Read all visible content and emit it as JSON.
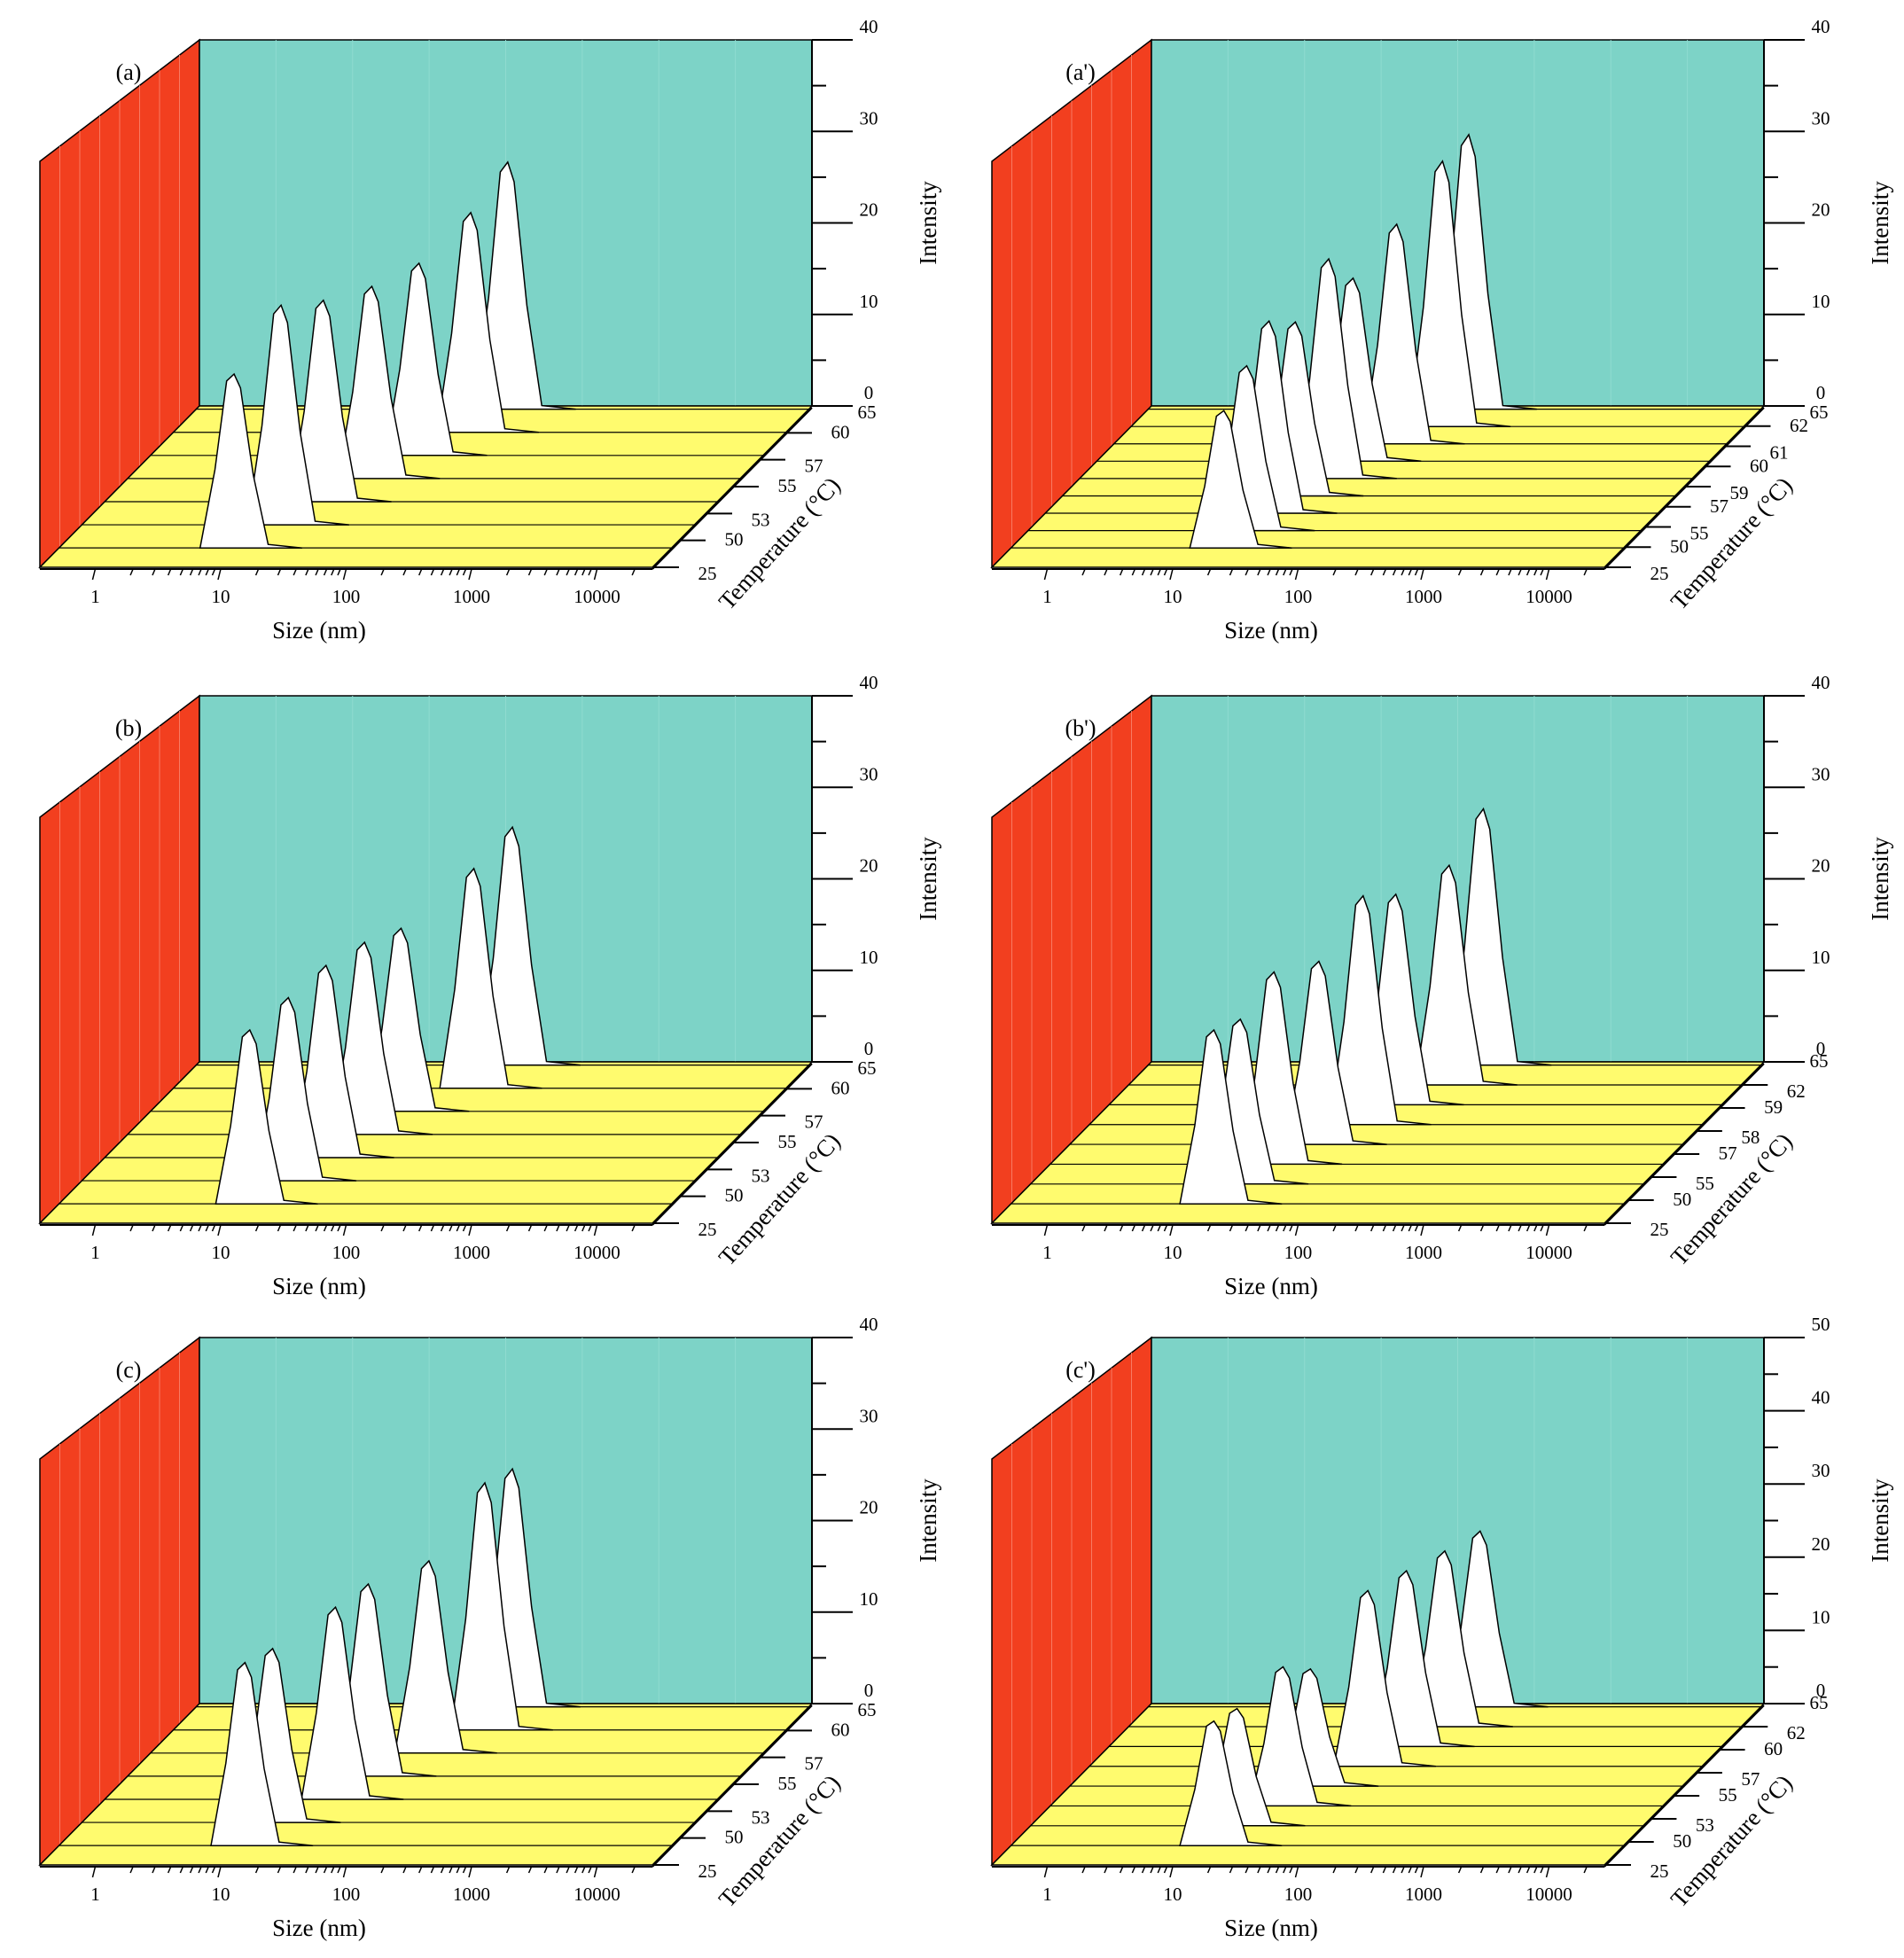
{
  "figure": {
    "chart_data": [
      {
        "type": "area",
        "label": "(a)",
        "xlabel": "Size (nm)",
        "ylabel": "Intensity",
        "zlabel": "Temperature (°C)",
        "x_scale": "log",
        "x_ticks": [
          "1",
          "10",
          "100",
          "1000",
          "10000"
        ],
        "y_ticks": [
          "0",
          "10",
          "20",
          "30",
          "40"
        ],
        "ylim": [
          0,
          40
        ],
        "temperature_ticks": [
          "25",
          "50",
          "53",
          "55",
          "57",
          "60",
          "65"
        ],
        "series": [
          {
            "temperature": "25",
            "peak_size": 9,
            "peak_intensity": 19
          },
          {
            "temperature": "50",
            "peak_size": 14,
            "peak_intensity": 24
          },
          {
            "temperature": "53",
            "peak_size": 20,
            "peak_intensity": 22
          },
          {
            "temperature": "55",
            "peak_size": 32,
            "peak_intensity": 21
          },
          {
            "temperature": "57",
            "peak_size": 50,
            "peak_intensity": 21
          },
          {
            "temperature": "60",
            "peak_size": 85,
            "peak_intensity": 24
          },
          {
            "temperature": "65",
            "peak_size": 110,
            "peak_intensity": 27
          }
        ]
      },
      {
        "type": "area",
        "label": "(a')",
        "xlabel": "Size (nm)",
        "ylabel": "Intensity",
        "zlabel": "Temperature (°C)",
        "x_scale": "log",
        "x_ticks": [
          "1",
          "10",
          "100",
          "1000",
          "10000"
        ],
        "y_ticks": [
          "0",
          "10",
          "20",
          "30",
          "40"
        ],
        "ylim": [
          0,
          40
        ],
        "temperature_ticks": [
          "25",
          "50",
          "55",
          "57",
          "59",
          "60",
          "61",
          "62",
          "65"
        ],
        "series": [
          {
            "temperature": "25",
            "peak_size": 18,
            "peak_intensity": 15
          },
          {
            "temperature": "50",
            "peak_size": 20,
            "peak_intensity": 18
          },
          {
            "temperature": "55",
            "peak_size": 22,
            "peak_intensity": 21
          },
          {
            "temperature": "57",
            "peak_size": 26,
            "peak_intensity": 19
          },
          {
            "temperature": "59",
            "peak_size": 35,
            "peak_intensity": 24
          },
          {
            "temperature": "60",
            "peak_size": 40,
            "peak_intensity": 20
          },
          {
            "temperature": "61",
            "peak_size": 65,
            "peak_intensity": 24
          },
          {
            "temperature": "62",
            "peak_size": 110,
            "peak_intensity": 29
          },
          {
            "temperature": "65",
            "peak_size": 130,
            "peak_intensity": 30
          }
        ]
      },
      {
        "type": "area",
        "label": "(b)",
        "xlabel": "Size (nm)",
        "ylabel": "Intensity",
        "zlabel": "Temperature (°C)",
        "x_scale": "log",
        "x_ticks": [
          "1",
          "10",
          "100",
          "1000",
          "10000"
        ],
        "y_ticks": [
          "0",
          "10",
          "20",
          "30",
          "40"
        ],
        "ylim": [
          0,
          40
        ],
        "temperature_ticks": [
          "25",
          "50",
          "53",
          "55",
          "57",
          "60",
          "65"
        ],
        "series": [
          {
            "temperature": "25",
            "peak_size": 12,
            "peak_intensity": 19
          },
          {
            "temperature": "50",
            "peak_size": 16,
            "peak_intensity": 20
          },
          {
            "temperature": "53",
            "peak_size": 21,
            "peak_intensity": 21
          },
          {
            "temperature": "55",
            "peak_size": 28,
            "peak_intensity": 21
          },
          {
            "temperature": "57",
            "peak_size": 36,
            "peak_intensity": 20
          },
          {
            "temperature": "60",
            "peak_size": 90,
            "peak_intensity": 24
          },
          {
            "temperature": "65",
            "peak_size": 120,
            "peak_intensity": 26
          }
        ]
      },
      {
        "type": "area",
        "label": "(b')",
        "xlabel": "Size (nm)",
        "ylabel": "Intensity",
        "zlabel": "Temperature (°C)",
        "x_scale": "log",
        "x_ticks": [
          "1",
          "10",
          "100",
          "1000",
          "10000"
        ],
        "y_ticks": [
          "0",
          "10",
          "20",
          "30",
          "40"
        ],
        "ylim": [
          0,
          40
        ],
        "temperature_ticks": [
          "25",
          "50",
          "55",
          "57",
          "58",
          "59",
          "62",
          "65"
        ],
        "series": [
          {
            "temperature": "25",
            "peak_size": 15,
            "peak_intensity": 19
          },
          {
            "temperature": "50",
            "peak_size": 17,
            "peak_intensity": 18
          },
          {
            "temperature": "55",
            "peak_size": 22,
            "peak_intensity": 21
          },
          {
            "temperature": "57",
            "peak_size": 35,
            "peak_intensity": 20
          },
          {
            "temperature": "58",
            "peak_size": 55,
            "peak_intensity": 25
          },
          {
            "temperature": "59",
            "peak_size": 70,
            "peak_intensity": 23
          },
          {
            "temperature": "62",
            "peak_size": 130,
            "peak_intensity": 24
          },
          {
            "temperature": "65",
            "peak_size": 170,
            "peak_intensity": 28
          }
        ]
      },
      {
        "type": "area",
        "label": "(c)",
        "xlabel": "Size (nm)",
        "ylabel": "Intensity",
        "zlabel": "Temperature (°C)",
        "x_scale": "log",
        "x_ticks": [
          "1",
          "10",
          "100",
          "1000",
          "10000"
        ],
        "y_ticks": [
          "0",
          "10",
          "20",
          "30",
          "40"
        ],
        "ylim": [
          0,
          40
        ],
        "temperature_ticks": [
          "25",
          "50",
          "53",
          "55",
          "57",
          "60",
          "65"
        ],
        "series": [
          {
            "temperature": "25",
            "peak_size": 11,
            "peak_intensity": 20
          },
          {
            "temperature": "50",
            "peak_size": 12,
            "peak_intensity": 19
          },
          {
            "temperature": "53",
            "peak_size": 25,
            "peak_intensity": 21
          },
          {
            "temperature": "55",
            "peak_size": 30,
            "peak_intensity": 21
          },
          {
            "temperature": "57",
            "peak_size": 60,
            "peak_intensity": 21
          },
          {
            "temperature": "60",
            "peak_size": 110,
            "peak_intensity": 27
          },
          {
            "temperature": "65",
            "peak_size": 120,
            "peak_intensity": 26
          }
        ]
      },
      {
        "type": "area",
        "label": "(c')",
        "xlabel": "Size (nm)",
        "ylabel": "Intensity",
        "zlabel": "Temperature (°C)",
        "x_scale": "log",
        "x_ticks": [
          "1",
          "10",
          "100",
          "1000",
          "10000"
        ],
        "y_ticks": [
          "0",
          "10",
          "20",
          "30",
          "40",
          "50"
        ],
        "ylim": [
          0,
          50
        ],
        "temperature_ticks": [
          "25",
          "50",
          "53",
          "55",
          "57",
          "60",
          "62",
          "65"
        ],
        "series": [
          {
            "temperature": "25",
            "peak_size": 15,
            "peak_intensity": 17
          },
          {
            "temperature": "50",
            "peak_size": 16,
            "peak_intensity": 16
          },
          {
            "temperature": "53",
            "peak_size": 26,
            "peak_intensity": 19
          },
          {
            "temperature": "55",
            "peak_size": 30,
            "peak_intensity": 16
          },
          {
            "temperature": "57",
            "peak_size": 60,
            "peak_intensity": 24
          },
          {
            "temperature": "60",
            "peak_size": 85,
            "peak_intensity": 24
          },
          {
            "temperature": "62",
            "peak_size": 120,
            "peak_intensity": 24
          },
          {
            "temperature": "65",
            "peak_size": 160,
            "peak_intensity": 24
          }
        ]
      }
    ]
  }
}
